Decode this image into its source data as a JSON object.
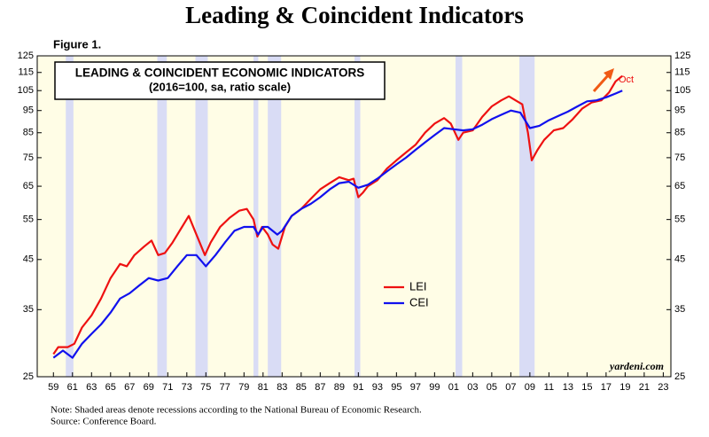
{
  "chart_data": {
    "type": "line",
    "title": "Leading & Coincident Indicators",
    "figure_label": "Figure 1.",
    "box_title": "LEADING & COINCIDENT ECONOMIC INDICATORS",
    "box_subtitle": "(2016=100, sa, ratio scale)",
    "annotation": "Oct",
    "watermark": "yardeni.com",
    "notes": [
      "Note: Shaded areas denote recessions according to the National Bureau of Economic Research.",
      "Source: Conference Board."
    ],
    "log_scale": true,
    "ylim": [
      25,
      125
    ],
    "yticks": [
      25,
      35,
      45,
      55,
      65,
      75,
      85,
      95,
      105,
      115,
      125
    ],
    "xlim": [
      1957.3,
      2023.8
    ],
    "xticks": [
      {
        "value": 1959,
        "label": "59"
      },
      {
        "value": 1961,
        "label": "61"
      },
      {
        "value": 1963,
        "label": "63"
      },
      {
        "value": 1965,
        "label": "65"
      },
      {
        "value": 1967,
        "label": "67"
      },
      {
        "value": 1969,
        "label": "69"
      },
      {
        "value": 1971,
        "label": "71"
      },
      {
        "value": 1973,
        "label": "73"
      },
      {
        "value": 1975,
        "label": "75"
      },
      {
        "value": 1977,
        "label": "77"
      },
      {
        "value": 1979,
        "label": "79"
      },
      {
        "value": 1981,
        "label": "81"
      },
      {
        "value": 1983,
        "label": "83"
      },
      {
        "value": 1985,
        "label": "85"
      },
      {
        "value": 1987,
        "label": "87"
      },
      {
        "value": 1989,
        "label": "89"
      },
      {
        "value": 1991,
        "label": "91"
      },
      {
        "value": 1993,
        "label": "93"
      },
      {
        "value": 1995,
        "label": "95"
      },
      {
        "value": 1997,
        "label": "97"
      },
      {
        "value": 1999,
        "label": "99"
      },
      {
        "value": 2001,
        "label": "01"
      },
      {
        "value": 2003,
        "label": "03"
      },
      {
        "value": 2005,
        "label": "05"
      },
      {
        "value": 2007,
        "label": "07"
      },
      {
        "value": 2009,
        "label": "09"
      },
      {
        "value": 2011,
        "label": "11"
      },
      {
        "value": 2013,
        "label": "13"
      },
      {
        "value": 2015,
        "label": "15"
      },
      {
        "value": 2017,
        "label": "17"
      },
      {
        "value": 2019,
        "label": "19"
      },
      {
        "value": 2021,
        "label": "21"
      },
      {
        "value": 2023,
        "label": "23"
      }
    ],
    "recessions": [
      [
        1960.3,
        1961.1
      ],
      [
        1969.9,
        1970.9
      ],
      [
        1973.9,
        1975.2
      ],
      [
        1980.0,
        1980.5
      ],
      [
        1981.5,
        1982.9
      ],
      [
        1990.6,
        1991.2
      ],
      [
        2001.2,
        2001.9
      ],
      [
        2007.9,
        2009.5
      ]
    ],
    "recession_color": "#d9dcf5",
    "background": "#fffde6",
    "series": [
      {
        "name": "LEI",
        "color": "#ee1111",
        "x": [
          1959,
          1959.5,
          1960.5,
          1961.2,
          1962,
          1963,
          1964,
          1965,
          1966,
          1966.7,
          1967.5,
          1968.5,
          1969.3,
          1970,
          1970.7,
          1971.5,
          1972.5,
          1973.2,
          1974,
          1974.9,
          1975.5,
          1976.5,
          1977.5,
          1978.5,
          1979.3,
          1980,
          1980.4,
          1980.9,
          1981.5,
          1982,
          1982.6,
          1983.3,
          1984,
          1985,
          1986,
          1987,
          1988,
          1989,
          1990,
          1990.5,
          1991,
          1991.5,
          1992,
          1993,
          1994,
          1995,
          1996,
          1997,
          1998,
          1999,
          2000,
          2000.7,
          2001.5,
          2002,
          2003,
          2004,
          2005,
          2006,
          2006.8,
          2007.5,
          2008.2,
          2008.8,
          2009.2,
          2009.8,
          2010.5,
          2011.5,
          2012.5,
          2013.5,
          2014.5,
          2015.5,
          2016.5,
          2017.3,
          2018,
          2018.7
        ],
        "values": [
          28,
          29,
          29,
          29.5,
          32,
          34,
          37,
          41,
          44,
          43.5,
          46,
          48,
          49.5,
          46,
          46.5,
          49,
          53,
          56,
          51,
          46,
          49,
          53,
          55.5,
          57.5,
          58,
          55,
          50.5,
          53,
          51,
          48.5,
          47.5,
          53,
          56,
          58,
          61,
          64,
          66,
          68,
          67,
          67.5,
          61.5,
          63,
          65,
          67,
          71,
          74,
          77,
          80,
          85,
          89,
          91.5,
          89,
          82,
          85,
          86,
          92,
          97,
          100,
          102,
          100,
          98,
          85,
          74,
          78,
          82,
          86,
          87,
          91,
          96,
          99,
          100,
          104,
          110,
          113
        ]
      },
      {
        "name": "CEI",
        "color": "#1111ee",
        "x": [
          1959,
          1960,
          1961,
          1962,
          1963,
          1964,
          1965,
          1966,
          1967,
          1968,
          1969,
          1970,
          1971,
          1972,
          1973,
          1974,
          1975,
          1976,
          1977,
          1978,
          1979,
          1980,
          1980.5,
          1981,
          1981.5,
          1982.5,
          1983,
          1984,
          1985,
          1986,
          1987,
          1988,
          1989,
          1990,
          1991,
          1992,
          1993,
          1994,
          1995,
          1996,
          1997,
          1998,
          1999,
          2000,
          2001,
          2002,
          2003,
          2004,
          2005,
          2006,
          2007,
          2008,
          2009,
          2010,
          2011,
          2012,
          2013,
          2014,
          2015,
          2016,
          2017,
          2018,
          2018.7
        ],
        "values": [
          27.5,
          28.5,
          27.5,
          29.5,
          31,
          32.5,
          34.5,
          37,
          38,
          39.5,
          41,
          40.5,
          41,
          43.5,
          46,
          46,
          43.5,
          46,
          49,
          52,
          53,
          53,
          51,
          53,
          53,
          51,
          52,
          56,
          58,
          59.5,
          61.5,
          64,
          66,
          66.5,
          64.5,
          65.5,
          67.5,
          70,
          72.5,
          75,
          78,
          81,
          84,
          87,
          86.5,
          86,
          86.5,
          88.5,
          91,
          93,
          95,
          94,
          87,
          88,
          90.5,
          92.5,
          94.5,
          97,
          99.5,
          100,
          101.5,
          103.5,
          105
        ]
      }
    ]
  }
}
